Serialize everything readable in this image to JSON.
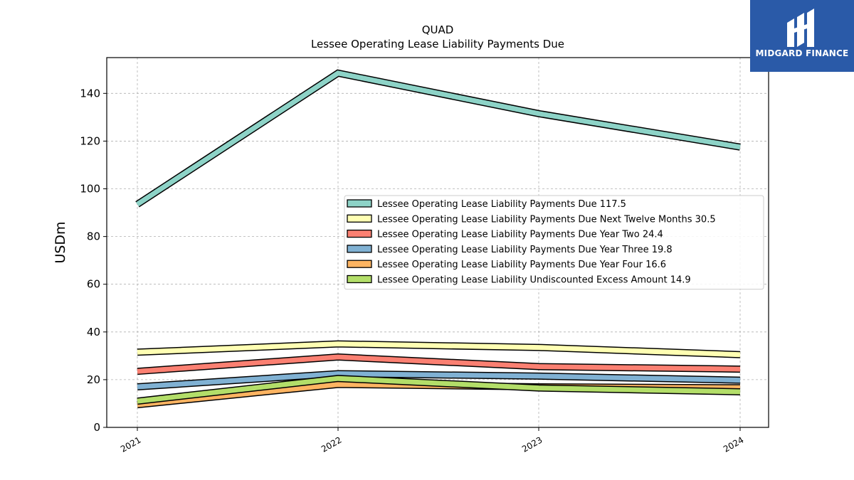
{
  "brand": {
    "name": "MIDGARD FINANCE",
    "color": "#2a5aa8"
  },
  "chart_data": {
    "type": "line",
    "title": "QUAD",
    "subtitle": "Lessee Operating Lease Liability Payments Due",
    "xlabel": "",
    "ylabel": "USDm",
    "categories": [
      "2021",
      "2022",
      "2023",
      "2024"
    ],
    "ylim": [
      0,
      155
    ],
    "yticks": [
      0,
      20,
      40,
      60,
      80,
      100,
      120,
      140
    ],
    "grid": true,
    "legend_position": "center-right",
    "series": [
      {
        "name": "Lessee Operating Lease Liability Payments Due  117.5",
        "color": "#8dd3c7",
        "values": [
          93.5,
          148.5,
          131.5,
          117.5
        ]
      },
      {
        "name": "Lessee Operating Lease Liability Payments Due Next Twelve Months  30.5",
        "color": "#ffffb3",
        "values": [
          31.5,
          35.0,
          33.5,
          30.5
        ]
      },
      {
        "name": "Lessee Operating Lease Liability Payments Due Year Two  24.4",
        "color": "#fb8072",
        "values": [
          23.5,
          29.5,
          25.5,
          24.4
        ]
      },
      {
        "name": "Lessee Operating Lease Liability Payments Due Year Three  19.8",
        "color": "#80b1d3",
        "values": [
          17.0,
          22.5,
          21.5,
          19.8
        ]
      },
      {
        "name": "Lessee Operating Lease Liability Payments Due Year Four  16.6",
        "color": "#fdb462",
        "values": [
          9.5,
          18.0,
          17.0,
          16.6
        ]
      },
      {
        "name": "Lessee Operating Lease Liability Undiscounted Excess Amount  14.9",
        "color": "#b3de69",
        "values": [
          11.0,
          20.5,
          16.5,
          14.9
        ]
      }
    ]
  }
}
